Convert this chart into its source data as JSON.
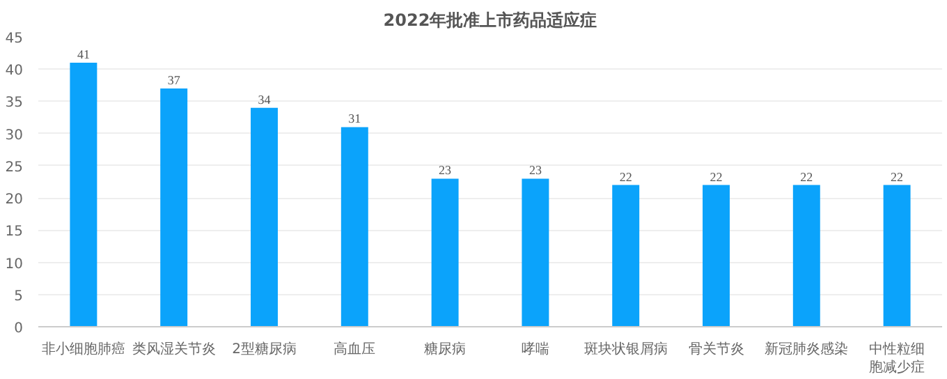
{
  "chart_data": {
    "type": "bar",
    "title": "2022年批准上市药品适应症",
    "categories": [
      "非小细胞肺癌",
      "类风湿关节炎",
      "2型糖尿病",
      "高血压",
      "糖尿病",
      "哮喘",
      "斑块状银屑病",
      "骨关节炎",
      "新冠肺炎感染",
      "中性粒细胞减少症"
    ],
    "values": [
      41,
      37,
      34,
      31,
      23,
      23,
      22,
      22,
      22,
      22
    ],
    "color": "#0ba3fb",
    "ylim": [
      0,
      45
    ],
    "yticks": [
      0,
      5,
      10,
      15,
      20,
      25,
      30,
      35,
      40,
      45
    ],
    "grid": "y",
    "data_labels": true
  }
}
